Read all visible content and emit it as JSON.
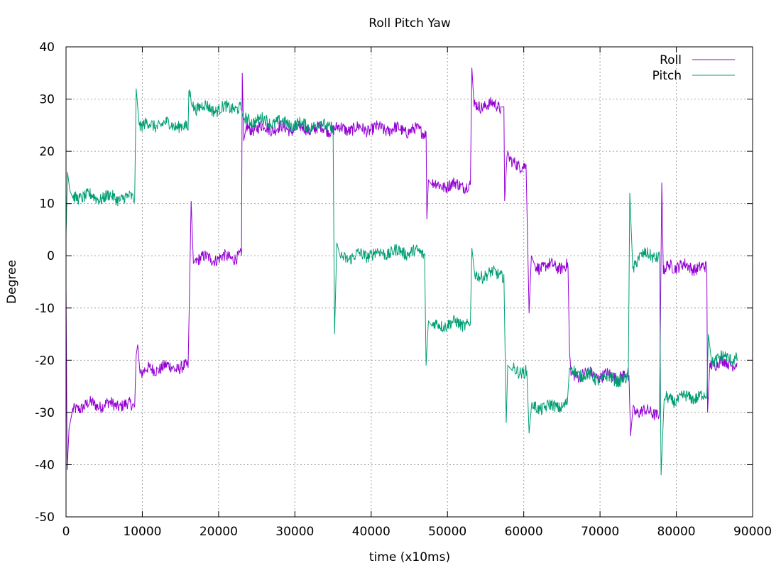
{
  "chart_data": {
    "type": "line",
    "title": "Roll Pitch Yaw",
    "xlabel": "time (x10ms)",
    "ylabel": "Degree",
    "xlim": [
      0,
      90000
    ],
    "ylim": [
      -50,
      40
    ],
    "x_ticks": [
      0,
      10000,
      20000,
      30000,
      40000,
      50000,
      60000,
      70000,
      80000,
      90000
    ],
    "y_ticks": [
      -50,
      -40,
      -30,
      -20,
      -10,
      0,
      10,
      20,
      30,
      40
    ],
    "grid": true,
    "legend_position": "top-right",
    "series": [
      {
        "name": "Roll",
        "color": "#9400d3",
        "points": [
          [
            0,
            -6
          ],
          [
            150,
            -41
          ],
          [
            400,
            -33
          ],
          [
            800,
            -30
          ],
          [
            1500,
            -29
          ],
          [
            3000,
            -28.5
          ],
          [
            5000,
            -28.5
          ],
          [
            7000,
            -28.5
          ],
          [
            9000,
            -28.8
          ],
          [
            9200,
            -19
          ],
          [
            9400,
            -17
          ],
          [
            9700,
            -22.5
          ],
          [
            10500,
            -22
          ],
          [
            12000,
            -21.5
          ],
          [
            14000,
            -21.3
          ],
          [
            16000,
            -21.5
          ],
          [
            16150,
            -10
          ],
          [
            16400,
            10.5
          ],
          [
            16700,
            -1.5
          ],
          [
            17000,
            -0.5
          ],
          [
            19000,
            -0.5
          ],
          [
            21000,
            -0.4
          ],
          [
            23000,
            0
          ],
          [
            23100,
            35
          ],
          [
            23300,
            22
          ],
          [
            23600,
            24.5
          ],
          [
            26000,
            24.5
          ],
          [
            30000,
            24.3
          ],
          [
            34000,
            24.3
          ],
          [
            38000,
            24.3
          ],
          [
            42000,
            24.3
          ],
          [
            45000,
            24
          ],
          [
            47200,
            23.8
          ],
          [
            47300,
            7
          ],
          [
            47500,
            14.5
          ],
          [
            48000,
            13.5
          ],
          [
            50000,
            13.5
          ],
          [
            53000,
            13.6
          ],
          [
            53200,
            36
          ],
          [
            53500,
            28.5
          ],
          [
            55000,
            29
          ],
          [
            57000,
            28.5
          ],
          [
            57400,
            28.5
          ],
          [
            57500,
            10.5
          ],
          [
            57800,
            19
          ],
          [
            58500,
            17.5
          ],
          [
            60300,
            17.5
          ],
          [
            60700,
            -11
          ],
          [
            61000,
            0
          ],
          [
            61500,
            -2
          ],
          [
            63000,
            -2
          ],
          [
            65800,
            -2
          ],
          [
            66000,
            -18
          ],
          [
            66200,
            -23
          ],
          [
            68000,
            -22.5
          ],
          [
            70000,
            -23
          ],
          [
            72000,
            -23
          ],
          [
            73800,
            -23
          ],
          [
            74000,
            -34.5
          ],
          [
            74300,
            -29.5
          ],
          [
            76000,
            -30
          ],
          [
            77800,
            -30
          ],
          [
            78100,
            14
          ],
          [
            78300,
            -3.5
          ],
          [
            79000,
            -1.8
          ],
          [
            81000,
            -2
          ],
          [
            84000,
            -2.5
          ],
          [
            84100,
            -30
          ],
          [
            84400,
            -20.5
          ],
          [
            86000,
            -20.5
          ],
          [
            88000,
            -20.5
          ]
        ]
      },
      {
        "name": "Pitch",
        "color": "#009e73",
        "points": [
          [
            0,
            4
          ],
          [
            200,
            16
          ],
          [
            500,
            12.5
          ],
          [
            900,
            11
          ],
          [
            2000,
            11.5
          ],
          [
            4000,
            11.2
          ],
          [
            6000,
            11.2
          ],
          [
            8000,
            11
          ],
          [
            9000,
            11
          ],
          [
            9200,
            32
          ],
          [
            9600,
            25
          ],
          [
            11000,
            25
          ],
          [
            13000,
            25.2
          ],
          [
            15000,
            25
          ],
          [
            16000,
            24
          ],
          [
            16100,
            31.5
          ],
          [
            16800,
            28.5
          ],
          [
            18000,
            28.5
          ],
          [
            20000,
            28
          ],
          [
            22000,
            28.5
          ],
          [
            23000,
            28
          ],
          [
            23300,
            26
          ],
          [
            25000,
            26
          ],
          [
            28000,
            25.5
          ],
          [
            31000,
            25
          ],
          [
            34000,
            25
          ],
          [
            35000,
            25
          ],
          [
            35200,
            -15
          ],
          [
            35500,
            2.5
          ],
          [
            36000,
            -0.5
          ],
          [
            38000,
            0
          ],
          [
            41000,
            0.5
          ],
          [
            44000,
            0.8
          ],
          [
            47000,
            0.5
          ],
          [
            47200,
            -21
          ],
          [
            47500,
            -12.5
          ],
          [
            48000,
            -13.5
          ],
          [
            50000,
            -13
          ],
          [
            53000,
            -13
          ],
          [
            53200,
            1.5
          ],
          [
            53600,
            -4
          ],
          [
            55000,
            -3.5
          ],
          [
            57400,
            -3.5
          ],
          [
            57700,
            -32
          ],
          [
            57900,
            -21
          ],
          [
            58500,
            -22
          ],
          [
            60400,
            -22
          ],
          [
            60700,
            -34
          ],
          [
            61000,
            -29
          ],
          [
            63000,
            -29
          ],
          [
            65700,
            -28.5
          ],
          [
            66000,
            -21.5
          ],
          [
            68000,
            -23
          ],
          [
            70000,
            -23.5
          ],
          [
            72000,
            -23.5
          ],
          [
            73700,
            -24
          ],
          [
            73900,
            12
          ],
          [
            74300,
            -2.5
          ],
          [
            75000,
            0
          ],
          [
            77800,
            0
          ],
          [
            78000,
            -42
          ],
          [
            78400,
            -27.5
          ],
          [
            80000,
            -27.5
          ],
          [
            82000,
            -27
          ],
          [
            84000,
            -27
          ],
          [
            84200,
            -15
          ],
          [
            84600,
            -20
          ],
          [
            86000,
            -19.5
          ],
          [
            88000,
            -19.5
          ]
        ]
      }
    ]
  }
}
